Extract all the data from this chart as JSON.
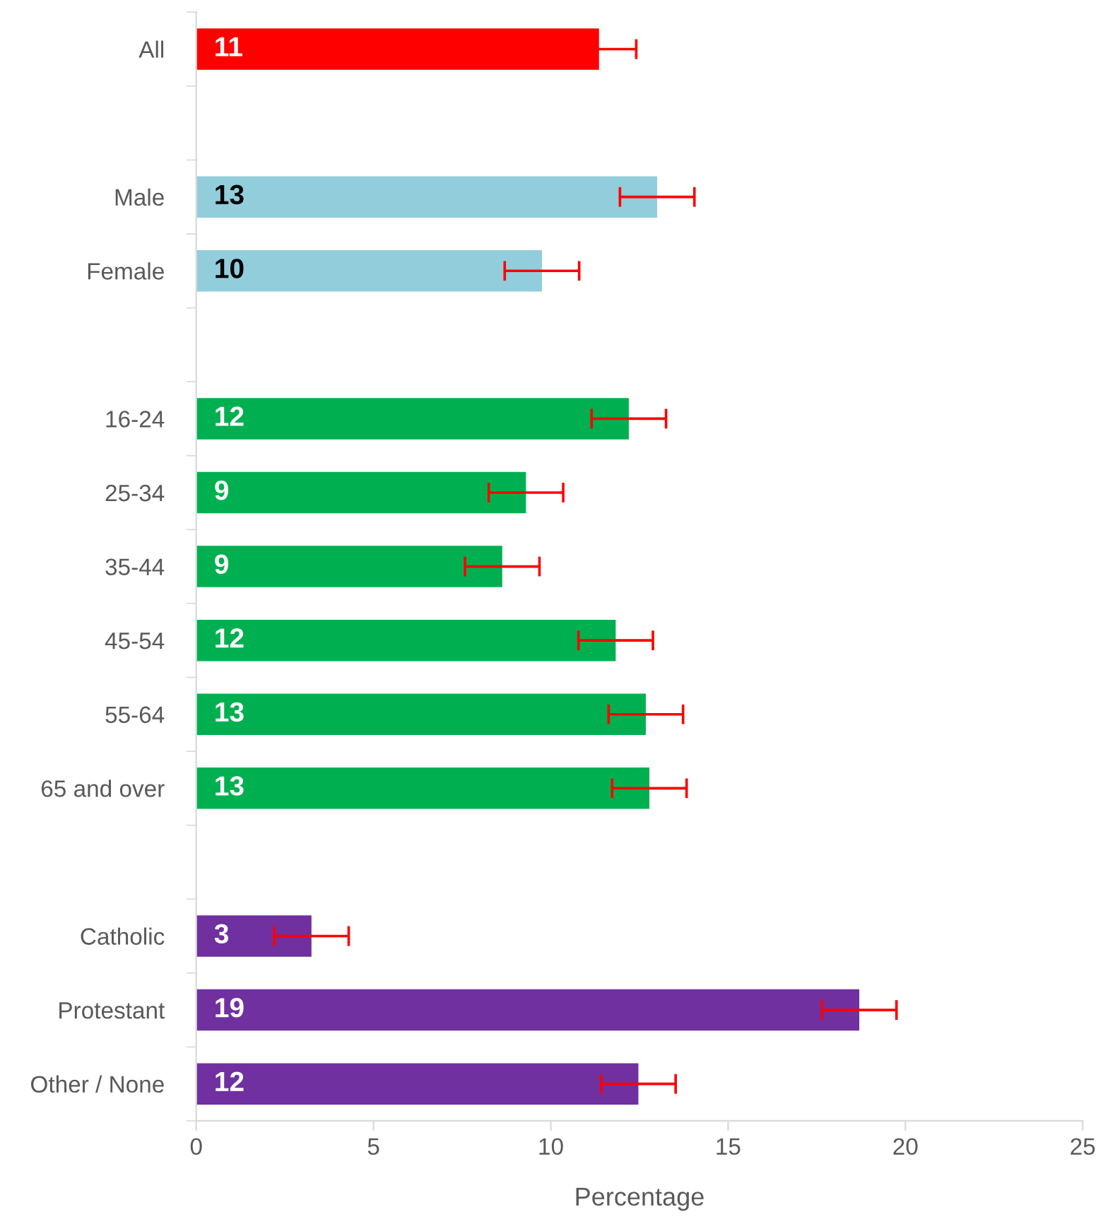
{
  "chart_data": {
    "type": "bar",
    "orientation": "horizontal",
    "xlabel": "Percentage",
    "categories": [
      "All",
      null,
      "Male",
      "Female",
      null,
      "16-24",
      "25-34",
      "35-44",
      "45-54",
      "55-64",
      "65 and over",
      null,
      "Catholic",
      "Protestant",
      "Other / None"
    ],
    "values": [
      11.36,
      null,
      13.0,
      9.75,
      null,
      12.2,
      9.3,
      8.63,
      11.83,
      12.68,
      12.78,
      null,
      3.25,
      18.7,
      12.47
    ],
    "value_labels": [
      "11",
      null,
      "13",
      "10",
      null,
      "12",
      "9",
      "9",
      "12",
      "13",
      "13",
      null,
      "3",
      "19",
      "12"
    ],
    "errors": [
      1.05,
      null,
      1.05,
      1.05,
      null,
      1.05,
      1.05,
      1.05,
      1.05,
      1.05,
      1.05,
      null,
      1.05,
      1.05,
      1.05
    ],
    "colors": [
      "#ff0000",
      null,
      "#92cddc",
      "#92cddc",
      null,
      "#00b050",
      "#00b050",
      "#00b050",
      "#00b050",
      "#00b050",
      "#00b050",
      null,
      "#7030a0",
      "#7030a0",
      "#7030a0"
    ],
    "xlim": [
      0,
      25
    ],
    "xticks": [
      0,
      5,
      10,
      15,
      20,
      25
    ],
    "grid": false
  }
}
